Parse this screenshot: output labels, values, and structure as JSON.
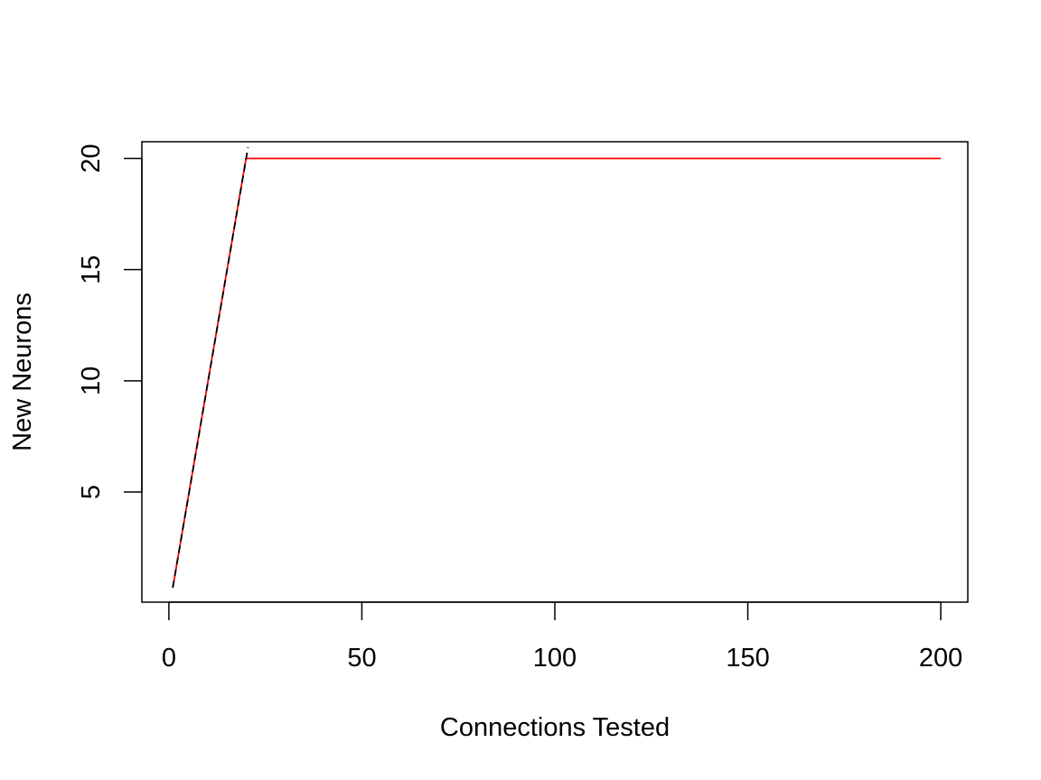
{
  "chart_data": {
    "type": "line",
    "title": "",
    "xlabel": "Connections Tested",
    "ylabel": "New Neurons",
    "xlim": [
      -7,
      207
    ],
    "ylim": [
      0.05,
      20.75
    ],
    "x_ticks": [
      0,
      50,
      100,
      150,
      200
    ],
    "y_ticks": [
      5,
      10,
      15,
      20
    ],
    "grid": false,
    "legend": "none",
    "series": [
      {
        "color": "#ff0000",
        "line_style": "solid",
        "x": [
          1,
          20,
          200
        ],
        "y": [
          0.7,
          20,
          20
        ]
      },
      {
        "color": "#000000",
        "line_style": "dashed",
        "x": [
          1,
          20.5
        ],
        "y": [
          0.7,
          20.5
        ]
      }
    ]
  }
}
